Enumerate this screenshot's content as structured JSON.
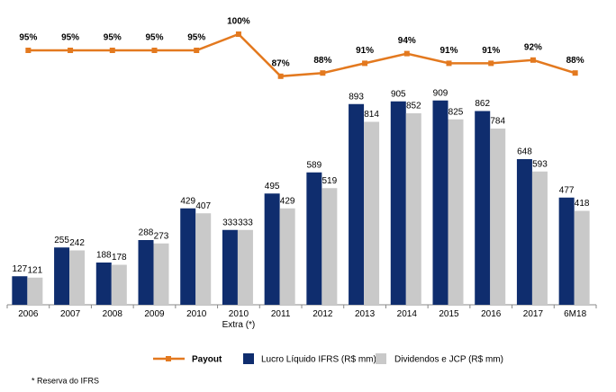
{
  "chart_data": {
    "type": "bar",
    "categories": [
      "2006",
      "2007",
      "2008",
      "2009",
      "2010",
      "2010 Extra (*)",
      "2011",
      "2012",
      "2013",
      "2014",
      "2015",
      "2016",
      "2017",
      "6M18"
    ],
    "series": [
      {
        "name": "Lucro Líquido IFRS (R$ mm)",
        "color": "#0f2d6e",
        "values": [
          127,
          255,
          188,
          288,
          429,
          333,
          495,
          589,
          893,
          905,
          909,
          862,
          648,
          477
        ]
      },
      {
        "name": "Dividendos e JCP  (R$ mm)",
        "color": "#c9c9c9",
        "values": [
          121,
          242,
          178,
          273,
          407,
          333,
          429,
          519,
          814,
          852,
          825,
          784,
          593,
          418
        ]
      },
      {
        "name": "Payout",
        "color": "#e3791f",
        "type": "line",
        "values": [
          95,
          95,
          95,
          95,
          95,
          100,
          87,
          88,
          91,
          94,
          91,
          91,
          92,
          88
        ],
        "value_labels": [
          "95%",
          "95%",
          "95%",
          "95%",
          "95%",
          "100%",
          "87%",
          "88%",
          "91%",
          "94%",
          "91%",
          "91%",
          "92%",
          "88%"
        ]
      }
    ],
    "footnote": "* Reserva do IFRS"
  }
}
